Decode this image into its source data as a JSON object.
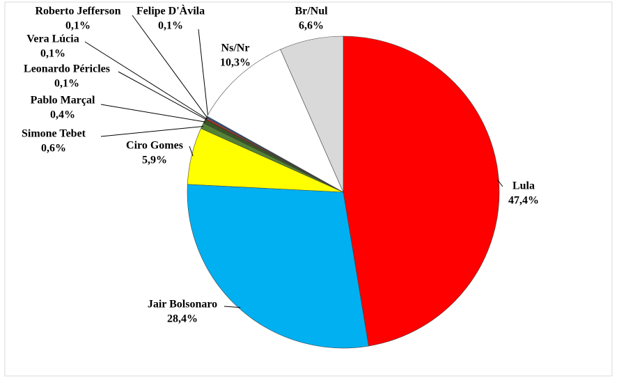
{
  "chart_data": {
    "type": "pie",
    "categories": [
      "Lula",
      "Jair Bolsonaro",
      "Ciro Gomes",
      "Simone Tebet",
      "Pablo Marçal",
      "Leonardo Péricles",
      "Vera Lúcia",
      "Roberto Jefferson",
      "Felipe D'Àvila",
      "Ns/Nr",
      "Br/Nul"
    ],
    "values": [
      47.4,
      28.4,
      5.9,
      0.6,
      0.4,
      0.1,
      0.1,
      0.1,
      0.1,
      10.3,
      6.6
    ],
    "value_labels": [
      "47,4%",
      "28,4%",
      "5,9%",
      "0,6%",
      "0,4%",
      "0,1%",
      "0,1%",
      "0,1%",
      "0,1%",
      "10,3%",
      "6,6%"
    ],
    "colors": [
      "#ff0000",
      "#00b0f0",
      "#ffff00",
      "#548235",
      "#375623",
      "#c00000",
      "#ff6600",
      "#7030a0",
      "#0070c0",
      "#ffffff",
      "#d9d9d9"
    ]
  }
}
